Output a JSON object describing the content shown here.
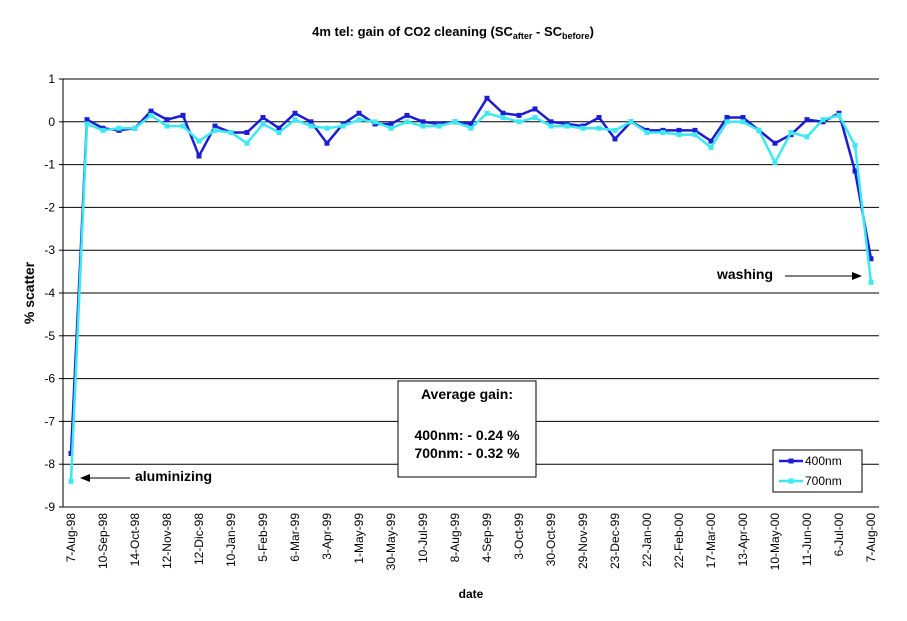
{
  "chart_data": {
    "type": "line",
    "title": [
      "4m tel: gain of CO2 cleaning (SC",
      "after",
      " - SC",
      "before",
      ")"
    ],
    "x_label": "date",
    "y_label": "% scatter",
    "categories": [
      "7-Aug-98",
      null,
      "10-Sep-98",
      null,
      "14-Oct-98",
      null,
      "12-Nov-98",
      null,
      "12-Dic-98",
      null,
      "10-Jan-99",
      null,
      "5-Feb-99",
      null,
      "6-Mar-99",
      null,
      "3-Apr-99",
      null,
      "1-May-99",
      null,
      "30-May-99",
      null,
      "10-Jul-99",
      null,
      "8-Aug-99",
      null,
      "4-Sep-99",
      null,
      "3-Oct-99",
      null,
      "30-Oct-99",
      null,
      "29-Nov-99",
      null,
      "23-Dec-99",
      null,
      "22-Jan-00",
      null,
      "22-Feb-00",
      null,
      "17-Mar-00",
      null,
      "13-Apr-00",
      null,
      "10-May-00",
      null,
      "11-Jun-00",
      null,
      "6-Jul-00",
      null,
      "7-Aug-00"
    ],
    "series": [
      {
        "name": "400nm",
        "color": "#1c1cd2",
        "values": [
          -7.75,
          0.05,
          -0.15,
          -0.2,
          -0.15,
          0.25,
          0.05,
          0.15,
          -0.8,
          -0.1,
          -0.25,
          -0.25,
          0.1,
          -0.15,
          0.2,
          0.0,
          -0.5,
          -0.05,
          0.2,
          -0.05,
          -0.05,
          0.15,
          0.0,
          -0.05,
          0.0,
          -0.05,
          0.55,
          0.2,
          0.15,
          0.3,
          0.0,
          -0.05,
          -0.1,
          0.1,
          -0.4,
          0.0,
          -0.2,
          -0.2,
          -0.2,
          -0.2,
          -0.45,
          0.1,
          0.1,
          -0.2,
          -0.5,
          -0.3,
          0.05,
          0.0,
          0.2,
          -1.15,
          -3.2
        ]
      },
      {
        "name": "700nm",
        "color": "#3ce8f2",
        "values": [
          -8.4,
          -0.05,
          -0.2,
          -0.15,
          -0.15,
          0.15,
          -0.1,
          -0.1,
          -0.45,
          -0.2,
          -0.25,
          -0.5,
          -0.05,
          -0.25,
          0.05,
          -0.1,
          -0.15,
          -0.1,
          0.05,
          0.0,
          -0.15,
          0.0,
          -0.1,
          -0.1,
          0.0,
          -0.15,
          0.2,
          0.1,
          0.0,
          0.1,
          -0.1,
          -0.1,
          -0.15,
          -0.15,
          -0.2,
          0.0,
          -0.25,
          -0.25,
          -0.3,
          -0.3,
          -0.6,
          0.0,
          0.0,
          -0.2,
          -0.95,
          -0.25,
          -0.35,
          0.05,
          0.15,
          -0.55,
          -3.75
        ]
      }
    ],
    "ylim": [
      -9,
      1
    ],
    "yticks": [
      1,
      0,
      -1,
      -2,
      -3,
      -4,
      -5,
      -6,
      -7,
      -8,
      -9
    ],
    "grid": true,
    "legend": "lower right",
    "annotations": [
      "washing",
      "aluminizing"
    ],
    "annotation_box": [
      "Average gain:",
      "400nm: - 0.24 %",
      "700nm: - 0.32 %"
    ]
  }
}
